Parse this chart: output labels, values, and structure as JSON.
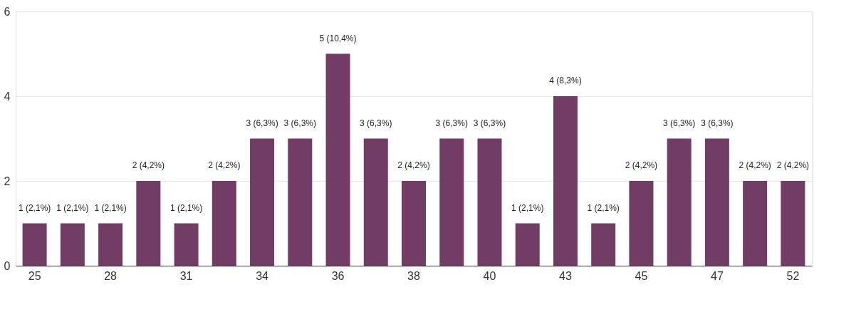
{
  "chart_data": {
    "type": "bar",
    "categories": [
      "25",
      null,
      "28",
      null,
      "31",
      null,
      "34",
      null,
      "36",
      null,
      "38",
      null,
      "40",
      null,
      "43",
      null,
      "45",
      null,
      "47",
      null,
      "52"
    ],
    "values": [
      1,
      1,
      1,
      2,
      1,
      2,
      3,
      3,
      5,
      3,
      2,
      3,
      3,
      1,
      4,
      1,
      2,
      3,
      3,
      2,
      2
    ],
    "value_labels": [
      "1 (2,1%)",
      "1 (2,1%)",
      "1 (2,1%)",
      "2 (4,2%)",
      "1 (2,1%)",
      "2 (4,2%)",
      "3 (6,3%)",
      "3 (6,3%)",
      "5 (10,4%)",
      "3 (6,3%)",
      "2 (4,2%)",
      "3 (6,3%)",
      "3 (6,3%)",
      "1 (2,1%)",
      "4 (8,3%)",
      "1 (2,1%)",
      "2 (4,2%)",
      "3 (6,3%)",
      "3 (6,3%)",
      "2 (4,2%)",
      "2 (4,2%)"
    ],
    "color": "#733c66",
    "ylim": [
      0,
      6
    ],
    "yticks": [
      0,
      2,
      4,
      6
    ],
    "grid": "y"
  }
}
